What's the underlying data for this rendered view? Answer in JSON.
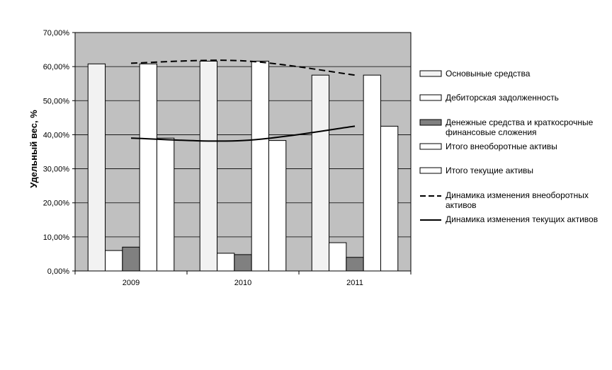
{
  "chart_data": {
    "type": "bar",
    "ylabel": "Удельный вес, %",
    "ylim": [
      0,
      70
    ],
    "yticks": [
      "0,00%",
      "10,00%",
      "20,00%",
      "30,00%",
      "40,00%",
      "50,00%",
      "60,00%",
      "70,00%"
    ],
    "grid": true,
    "legend_position": "right",
    "categories": [
      "2009",
      "2010",
      "2011"
    ],
    "series": [
      {
        "name": "Основыные средства",
        "kind": "bar",
        "color": "#f2f2f2",
        "values": [
          60.8,
          61.6,
          57.5
        ]
      },
      {
        "name": "Дебиторская задолженность",
        "kind": "bar",
        "color": "#ffffff",
        "values": [
          6.0,
          5.2,
          8.3
        ]
      },
      {
        "name": "Денежные средства и краткосрочные финансовые сложения",
        "kind": "bar",
        "color": "#808080",
        "values": [
          7.0,
          4.8,
          4.0
        ]
      },
      {
        "name": "Итого внеоборотные активы",
        "kind": "bar",
        "color": "#ffffff",
        "values": [
          60.8,
          61.6,
          57.5
        ]
      },
      {
        "name": "Итого текущие активы",
        "kind": "bar",
        "color": "#ffffff",
        "values": [
          39.0,
          38.3,
          42.5
        ]
      },
      {
        "name": "Динамика изменения внеоборотных активов",
        "kind": "line",
        "style": "dashed",
        "color": "#000000",
        "values": [
          61.0,
          61.7,
          57.5
        ]
      },
      {
        "name": "Динамика изменения текущих активов",
        "kind": "line",
        "style": "solid",
        "color": "#000000",
        "values": [
          39.0,
          38.3,
          42.5
        ]
      }
    ],
    "plot_background": "#c0c0c0"
  }
}
